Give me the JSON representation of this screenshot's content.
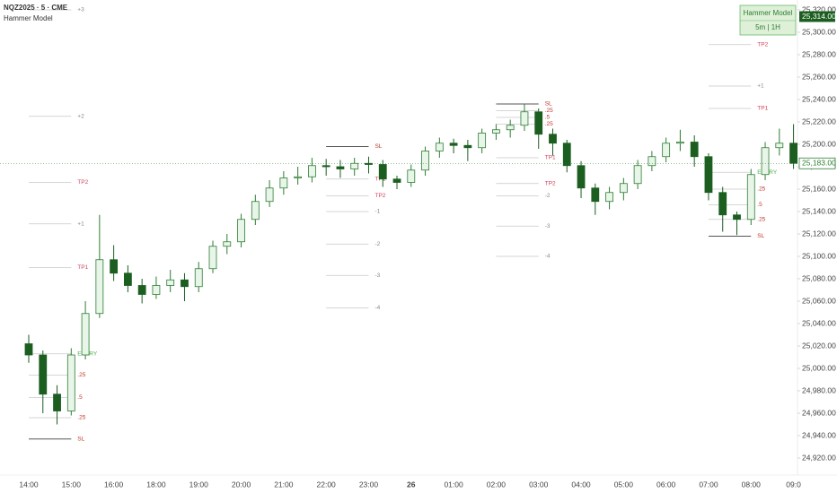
{
  "chart_data": {
    "type": "candlestick",
    "title": "NQZ2025 · 5 · CME",
    "subtitle": "Hammer Model",
    "widget": {
      "title": "Hammer Model",
      "subtitle": "5m | 1H"
    },
    "categories": [
      "14:00",
      null,
      null,
      "15:00",
      null,
      null,
      "16:00",
      null,
      null,
      "18:00",
      null,
      null,
      "19:00",
      null,
      null,
      "20:00",
      null,
      null,
      "21:00",
      null,
      null,
      "22:00",
      null,
      null,
      "23:00",
      null,
      null,
      "26",
      null,
      null,
      "01:00",
      null,
      null,
      "02:00",
      null,
      null,
      "03:00",
      null,
      null,
      "04:00",
      null,
      null,
      "05:00",
      null,
      null,
      "06:00",
      null,
      null,
      "07:00",
      null,
      null,
      "08:00",
      null,
      null,
      "09:0"
    ],
    "open": [
      25022,
      25012,
      24977,
      24962,
      25012,
      25049,
      25097,
      25085,
      25074,
      25066,
      25074,
      25079,
      25073,
      25089,
      25109,
      25113,
      25133,
      25149,
      25161,
      25170,
      25171,
      25181,
      25180,
      25178,
      25183,
      25182,
      25169,
      25166,
      25177,
      25194,
      25201,
      25199,
      25197,
      25210,
      25213,
      25217,
      25229,
      25209,
      25201,
      25181,
      25161,
      25149,
      25157,
      25165,
      25181,
      25189,
      25201,
      25202,
      25189,
      25157,
      25137,
      25133,
      25173,
      25197,
      25201
    ],
    "high": [
      25030,
      25016,
      24985,
      25018,
      25060,
      25137,
      25110,
      25092,
      25080,
      25082,
      25088,
      25085,
      25095,
      25114,
      25120,
      25138,
      25155,
      25168,
      25176,
      25180,
      25188,
      25187,
      25186,
      25188,
      25189,
      25186,
      25172,
      25182,
      25198,
      25206,
      25205,
      25204,
      25214,
      25218,
      25222,
      25236,
      25232,
      25214,
      25204,
      25185,
      25165,
      25162,
      25170,
      25186,
      25194,
      25206,
      25213,
      25208,
      25192,
      25162,
      25140,
      25178,
      25202,
      25214,
      25218
    ],
    "low": [
      25005,
      24960,
      24950,
      24958,
      25008,
      25045,
      25078,
      25068,
      25058,
      25062,
      25068,
      25060,
      25068,
      25085,
      25102,
      25108,
      25128,
      25144,
      25155,
      25164,
      25166,
      25172,
      25170,
      25172,
      25174,
      25162,
      25160,
      25162,
      25172,
      25188,
      25192,
      25185,
      25192,
      25204,
      25206,
      25212,
      25196,
      25190,
      25175,
      25152,
      25137,
      25142,
      25150,
      25160,
      25176,
      25184,
      25194,
      25180,
      25150,
      25122,
      25119,
      25128,
      25168,
      25190,
      25178
    ],
    "close": [
      25012,
      24977,
      24962,
      25012,
      25049,
      25097,
      25085,
      25074,
      25066,
      25074,
      25079,
      25073,
      25089,
      25109,
      25113,
      25133,
      25149,
      25161,
      25170,
      25171,
      25181,
      25180,
      25178,
      25183,
      25182,
      25169,
      25166,
      25177,
      25194,
      25201,
      25199,
      25197,
      25210,
      25213,
      25217,
      25229,
      25209,
      25201,
      25181,
      25161,
      25149,
      25157,
      25165,
      25181,
      25189,
      25201,
      25202,
      25189,
      25157,
      25137,
      25133,
      25173,
      25197,
      25201,
      25183
    ],
    "up_color": "#e8f5e9",
    "up_border": "#2e7d32",
    "down_color": "#1b5e20",
    "ylim": [
      24904.8,
      25328.8
    ],
    "yticks": [
      {
        "value": 24920,
        "label": "24,920.00"
      },
      {
        "value": 24940,
        "label": "24,940.00"
      },
      {
        "value": 24960,
        "label": "24,960.00"
      },
      {
        "value": 24980,
        "label": "24,980.00"
      },
      {
        "value": 25000,
        "label": "25,000.00"
      },
      {
        "value": 25020,
        "label": "25,020.00"
      },
      {
        "value": 25040,
        "label": "25,040.00"
      },
      {
        "value": 25060,
        "label": "25,060.00"
      },
      {
        "value": 25080,
        "label": "25,080.00"
      },
      {
        "value": 25100,
        "label": "25,100.00"
      },
      {
        "value": 25120,
        "label": "25,120.00"
      },
      {
        "value": 25140,
        "label": "25,140.00"
      },
      {
        "value": 25160,
        "label": "25,160.00"
      },
      {
        "value": 25180,
        "label": "25,180.00"
      },
      {
        "value": 25200,
        "label": "25,200.00"
      },
      {
        "value": 25220,
        "label": "25,220.00"
      },
      {
        "value": 25240,
        "label": "25,240.00"
      },
      {
        "value": 25260,
        "label": "25,260.00"
      },
      {
        "value": 25280,
        "label": "25,280.00"
      },
      {
        "value": 25300,
        "label": "25,300.00"
      },
      {
        "value": 25320,
        "label": "25,320.00"
      }
    ],
    "last_price": {
      "value": 25183,
      "label": "25,183.00"
    },
    "marker_price": {
      "value": 25314,
      "label": "25,314.00"
    },
    "levels": [
      {
        "label": "+3",
        "value": 25320,
        "from": 0,
        "to": 3,
        "color": "#888888"
      },
      {
        "label": "+2",
        "value": 25225,
        "from": 0,
        "to": 3,
        "color": "#888888"
      },
      {
        "label": "TP2",
        "value": 25166,
        "from": 0,
        "to": 3,
        "color": "#d0435b"
      },
      {
        "label": "+1",
        "value": 25129,
        "from": 0,
        "to": 3,
        "color": "#888888"
      },
      {
        "label": "TP1",
        "value": 25090,
        "from": 0,
        "to": 3,
        "color": "#d0435b"
      },
      {
        "label": "ENTRY",
        "value": 25013,
        "from": 0,
        "to": 3,
        "color": "#4caf50"
      },
      {
        "label": ".25",
        "value": 24994,
        "from": 0,
        "to": 3,
        "color": "#c0392b"
      },
      {
        "label": ".5",
        "value": 24974,
        "from": 0,
        "to": 3,
        "color": "#c0392b"
      },
      {
        "label": ".25",
        "value": 24956,
        "from": 0,
        "to": 3,
        "color": "#c0392b"
      },
      {
        "label": "SL",
        "value": 24937,
        "from": 0,
        "to": 3,
        "color": "#c0392b"
      },
      {
        "label": "SL",
        "value": 25198,
        "from": 21,
        "to": 24,
        "color": "#c0392b"
      },
      {
        "label": "TP1",
        "value": 25169,
        "from": 21,
        "to": 24,
        "color": "#d0435b"
      },
      {
        "label": "TP2",
        "value": 25154,
        "from": 21,
        "to": 24,
        "color": "#d0435b"
      },
      {
        "label": "-1",
        "value": 25140,
        "from": 21,
        "to": 24,
        "color": "#888888"
      },
      {
        "label": "-2",
        "value": 25111,
        "from": 21,
        "to": 24,
        "color": "#888888"
      },
      {
        "label": "-3",
        "value": 25083,
        "from": 21,
        "to": 24,
        "color": "#888888"
      },
      {
        "label": "-4",
        "value": 25054,
        "from": 21,
        "to": 24,
        "color": "#888888"
      },
      {
        "label": "SL",
        "value": 25236,
        "from": 33,
        "to": 36,
        "color": "#c0392b"
      },
      {
        "label": ".25",
        "value": 25230,
        "from": 33,
        "to": 36,
        "color": "#c0392b"
      },
      {
        "label": ".5",
        "value": 25224,
        "from": 33,
        "to": 36,
        "color": "#c0392b"
      },
      {
        "label": ".25",
        "value": 25218,
        "from": 33,
        "to": 36,
        "color": "#c0392b"
      },
      {
        "label": "TP1",
        "value": 25188,
        "from": 33,
        "to": 36,
        "color": "#d0435b"
      },
      {
        "label": "TP2",
        "value": 25165,
        "from": 33,
        "to": 36,
        "color": "#d0435b"
      },
      {
        "label": "-2",
        "value": 25154,
        "from": 33,
        "to": 36,
        "color": "#888888"
      },
      {
        "label": "-3",
        "value": 25127,
        "from": 33,
        "to": 36,
        "color": "#888888"
      },
      {
        "label": "-4",
        "value": 25100,
        "from": 33,
        "to": 36,
        "color": "#888888"
      },
      {
        "label": "TP2",
        "value": 25289,
        "from": 48,
        "to": 51,
        "color": "#d0435b"
      },
      {
        "label": "+1",
        "value": 25252,
        "from": 48,
        "to": 51,
        "color": "#888888"
      },
      {
        "label": "TP1",
        "value": 25232,
        "from": 48,
        "to": 51,
        "color": "#d0435b"
      },
      {
        "label": "ENTRY",
        "value": 25175,
        "from": 48,
        "to": 51,
        "color": "#4caf50"
      },
      {
        "label": ".25",
        "value": 25160,
        "from": 48,
        "to": 51,
        "color": "#c0392b"
      },
      {
        "label": ".5",
        "value": 25146,
        "from": 48,
        "to": 51,
        "color": "#c0392b"
      },
      {
        "label": ".25",
        "value": 25133,
        "from": 48,
        "to": 51,
        "color": "#c0392b"
      },
      {
        "label": "SL",
        "value": 25118,
        "from": 48,
        "to": 51,
        "color": "#c0392b"
      }
    ]
  }
}
